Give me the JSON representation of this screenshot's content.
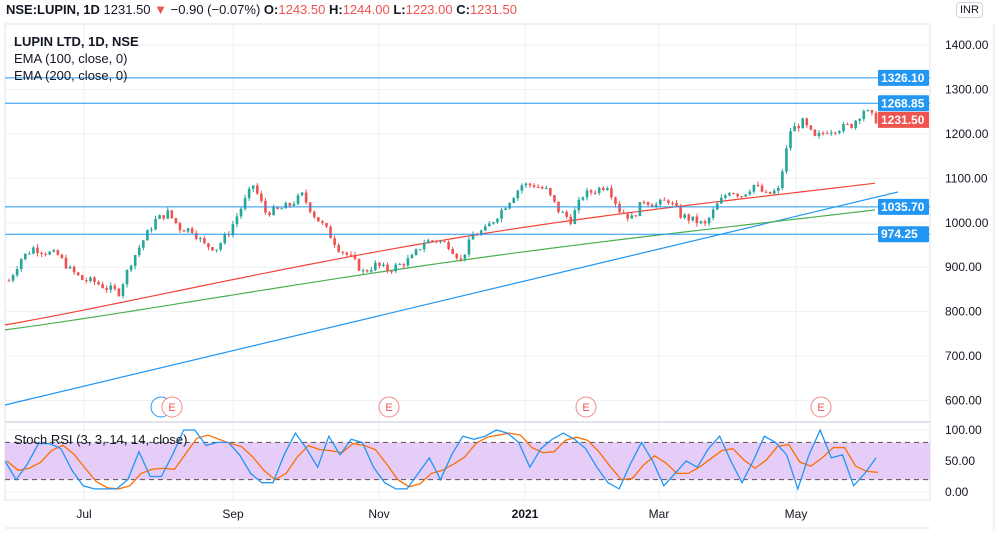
{
  "header": {
    "symbol": "NSE:LUPIN, 1D",
    "last": "1231.50",
    "change": "−0.90 (−0.07%)",
    "o_label": "O:",
    "o": "1243.50",
    "h_label": "H:",
    "h": "1244.00",
    "l_label": "L:",
    "l": "1223.00",
    "c_label": "C:",
    "c": "1231.50"
  },
  "legend": {
    "title": "LUPIN LTD, 1D, NSE",
    "ema100": "EMA (100, close, 0)",
    "ema200": "EMA (200, close, 0)"
  },
  "currency": "INR",
  "colors": {
    "up": "#26a69a",
    "down": "#ef5350",
    "ema100": "#f44336",
    "ema200": "#4caf50",
    "line": "#2196f3",
    "stochK": "#2196f3",
    "stochD": "#ff6d00",
    "band": "#e1c4f7"
  },
  "chart_data": {
    "type": "candlestick",
    "price_axis": {
      "ticks": [
        600,
        700,
        800,
        900,
        1000,
        1100,
        1200,
        1300,
        1400
      ],
      "labels": [
        "600.00",
        "700.00",
        "800.00",
        "900.00",
        "1000.00",
        "1100.00",
        "1200.00",
        "1300.00",
        "1400.00"
      ],
      "ylim": [
        560,
        1450
      ]
    },
    "time_axis": {
      "labels": [
        "Jul",
        "Sep",
        "Nov",
        "2021",
        "Mar",
        "May"
      ]
    },
    "closes": [
      870,
      920,
      943,
      934,
      927,
      894,
      872,
      867,
      853,
      844,
      912,
      961,
      1006,
      1022,
      988,
      984,
      950,
      943,
      979,
      1033,
      1085,
      1024,
      1028,
      1040,
      1062,
      1017,
      984,
      943,
      921,
      889,
      905,
      894,
      905,
      921,
      957,
      961,
      950,
      916,
      972,
      984,
      1017,
      1051,
      1085,
      1085,
      1073,
      1028,
      1006,
      1062,
      1073,
      1085,
      1028,
      1010,
      1051,
      1040,
      1051,
      1017,
      1006,
      995,
      1040,
      1073,
      1062,
      1085,
      1062,
      1073,
      1208,
      1226,
      1190,
      1208,
      1213,
      1220,
      1254,
      1231.5
    ],
    "ema100": {
      "start": 770,
      "end": 1089
    },
    "ema200": {
      "start": 759,
      "end": 1029
    },
    "horizontal_levels": [
      {
        "value": 1326.1,
        "label": "1326.10"
      },
      {
        "value": 1268.85,
        "label": "1268.85"
      },
      {
        "value": 1035.7,
        "label": "1035.70"
      },
      {
        "value": 974.25,
        "label": "974.25"
      }
    ],
    "last_price": {
      "value": 1231.5,
      "label": "1231.50"
    },
    "earnings_markers": [
      "E",
      "E",
      "E",
      "E"
    ],
    "stoch_rsi": {
      "title": "Stoch RSI (3, 3, 14, 14, close)",
      "ticks": [
        "100.00",
        "50.00",
        "0.00"
      ],
      "upper_band": 80,
      "lower_band": 20,
      "k": [
        50,
        20,
        45,
        78,
        78,
        70,
        35,
        10,
        5,
        5,
        5,
        20,
        65,
        25,
        25,
        60,
        100,
        100,
        75,
        80,
        80,
        60,
        30,
        15,
        15,
        60,
        95,
        70,
        40,
        90,
        60,
        85,
        80,
        40,
        15,
        5,
        5,
        30,
        55,
        20,
        60,
        90,
        85,
        90,
        100,
        95,
        80,
        40,
        70,
        85,
        95,
        85,
        70,
        40,
        15,
        5,
        45,
        80,
        50,
        10,
        30,
        50,
        40,
        70,
        90,
        50,
        15,
        50,
        90,
        80,
        60,
        5,
        60,
        100,
        55,
        60,
        10,
        30,
        55
      ]
    }
  }
}
